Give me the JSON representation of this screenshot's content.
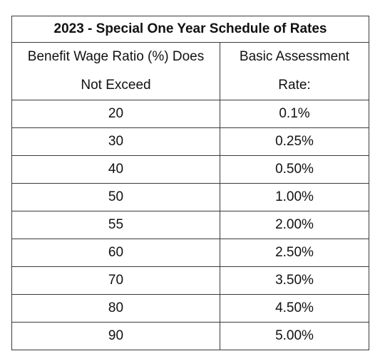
{
  "table": {
    "title": "2023 - Special One Year Schedule of Rates",
    "headers": {
      "col1_line1": "Benefit Wage Ratio (%) Does",
      "col1_line2": "Not Exceed",
      "col2_line1": "Basic Assessment",
      "col2_line2": "Rate:"
    },
    "rows": [
      {
        "ratio": "20",
        "rate": "0.1%"
      },
      {
        "ratio": "30",
        "rate": "0.25%"
      },
      {
        "ratio": "40",
        "rate": "0.50%"
      },
      {
        "ratio": "50",
        "rate": "1.00%"
      },
      {
        "ratio": "55",
        "rate": "2.00%"
      },
      {
        "ratio": "60",
        "rate": "2.50%"
      },
      {
        "ratio": "70",
        "rate": "3.50%"
      },
      {
        "ratio": "80",
        "rate": "4.50%"
      },
      {
        "ratio": "90",
        "rate": "5.00%"
      }
    ]
  }
}
